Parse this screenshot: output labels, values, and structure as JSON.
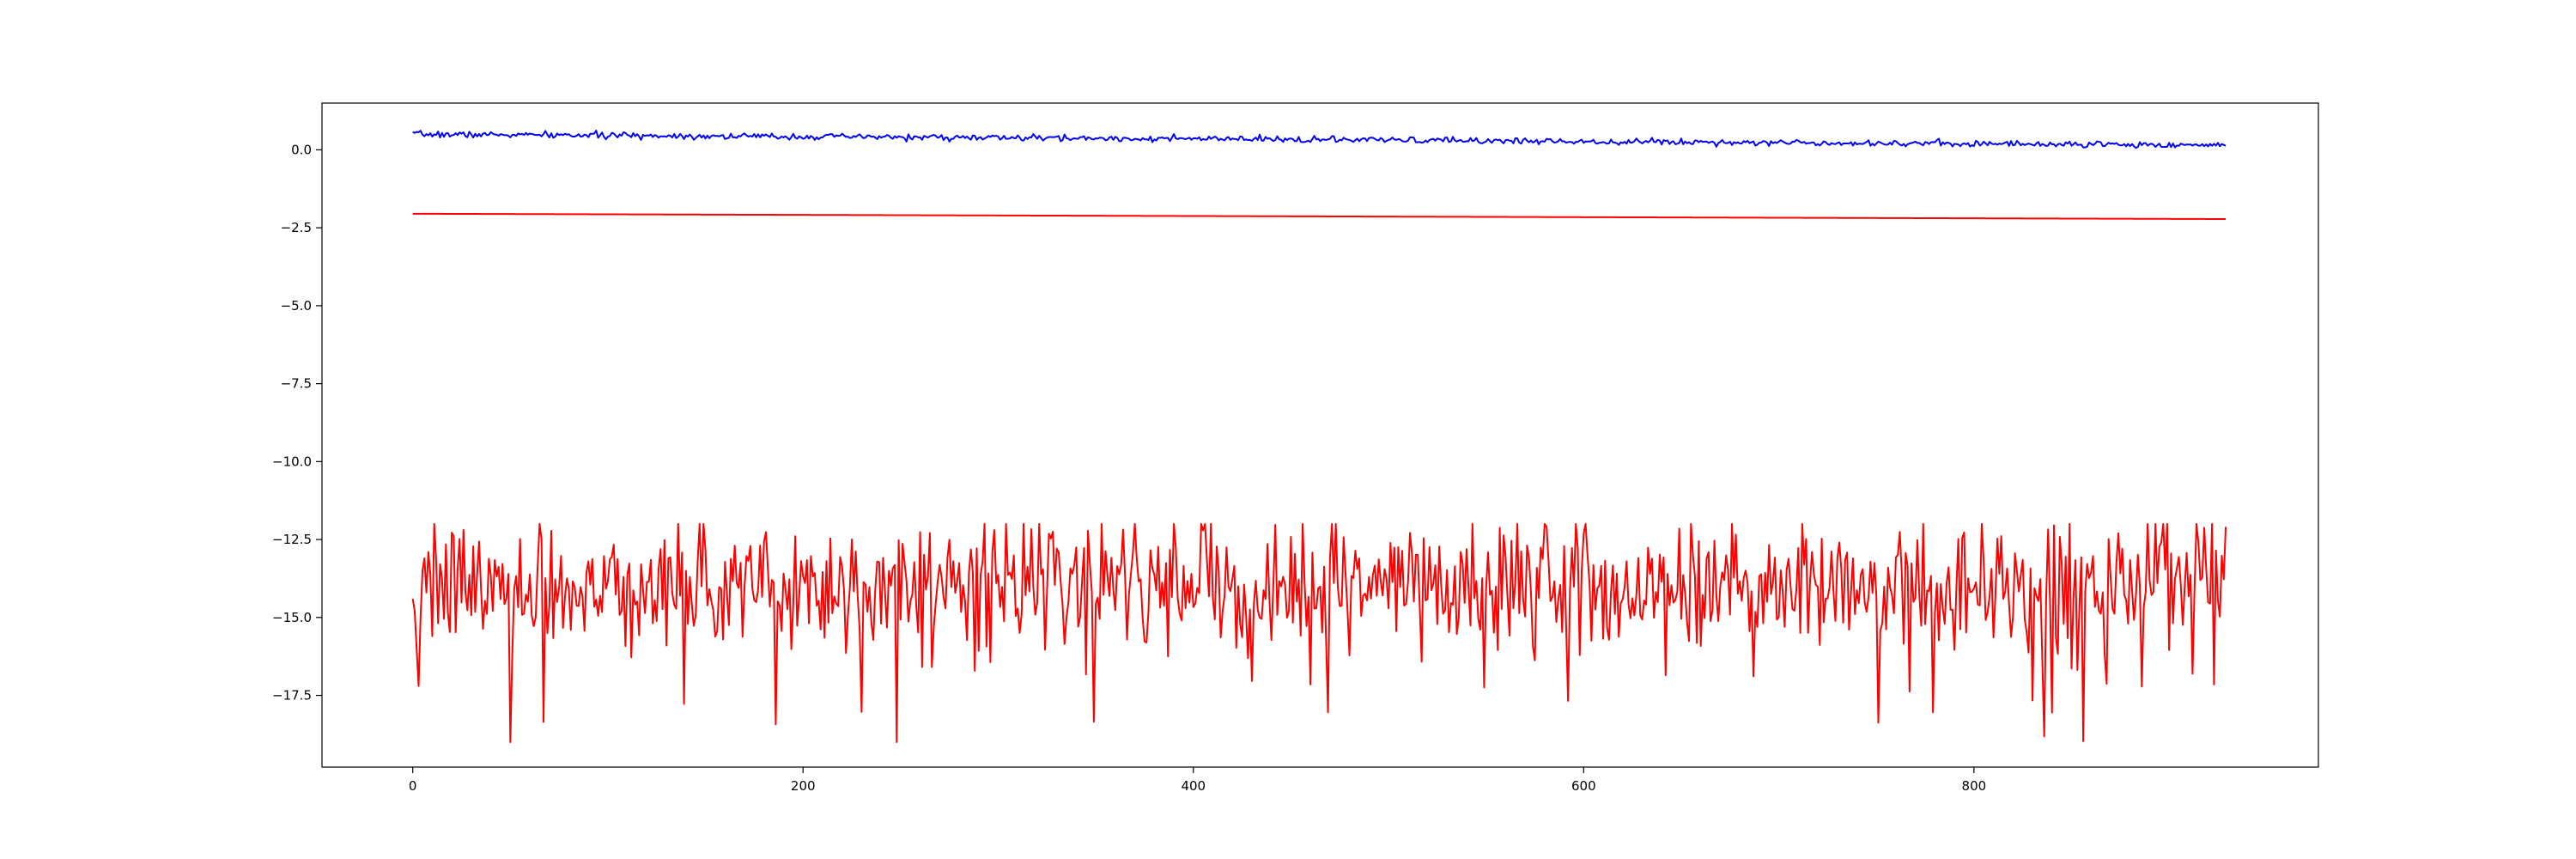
{
  "chart_data": {
    "type": "line",
    "title": "",
    "xlabel": "",
    "ylabel": "",
    "xlim": [
      -46.5,
      976.5
    ],
    "ylim": [
      -19.8,
      1.5
    ],
    "grid": false,
    "legend": "none",
    "x_ticks": [
      {
        "value": 0,
        "label": "0"
      },
      {
        "value": 200,
        "label": "200"
      },
      {
        "value": 400,
        "label": "400"
      },
      {
        "value": 600,
        "label": "600"
      },
      {
        "value": 800,
        "label": "800"
      }
    ],
    "y_ticks": [
      {
        "value": 0.0,
        "label": "0.0"
      },
      {
        "value": -2.5,
        "label": "−2.5"
      },
      {
        "value": -5.0,
        "label": "−5.0"
      },
      {
        "value": -7.5,
        "label": "−7.5"
      },
      {
        "value": -10.0,
        "label": "−10.0"
      },
      {
        "value": -12.5,
        "label": "−12.5"
      },
      {
        "value": -15.0,
        "label": "−15.0"
      },
      {
        "value": -17.5,
        "label": "−17.5"
      }
    ],
    "n_points": 930,
    "series": [
      {
        "color": "#0000ff",
        "trend_start": 0.5,
        "trend_end": 0.15,
        "noise_amplitude": 0.09,
        "min": -0.05,
        "max": 0.65
      },
      {
        "color": "#ff0000",
        "values_start": -2.05,
        "values_end": -2.22
      },
      {
        "color": "#ff0000",
        "mean": -14.0,
        "noise_amplitude": 1.05,
        "min": -19.0,
        "max": -12.0,
        "first_values": [
          -14.4,
          -14.8,
          -16.0,
          -17.2,
          -15.0,
          -13.5,
          -13.1,
          -14.2,
          -12.9,
          -13.6,
          -15.6
        ]
      }
    ]
  }
}
